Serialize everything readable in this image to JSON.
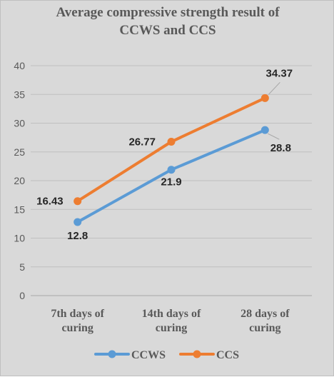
{
  "chart_data": {
    "type": "line",
    "title": "Average compressive strength result  of CCWS and CCS",
    "title_lines": [
      "Average compressive strength result  of",
      "CCWS and CCS"
    ],
    "categories": [
      [
        "7th days of",
        "curing"
      ],
      [
        "14th days of",
        "curing"
      ],
      [
        "28 days of",
        "curing"
      ]
    ],
    "series": [
      {
        "name": "CCWS",
        "color": "#5b9bd5",
        "values": [
          12.8,
          21.9,
          28.8
        ],
        "labels": [
          "12.8",
          "21.9",
          "28.8"
        ]
      },
      {
        "name": "CCS",
        "color": "#ed7d31",
        "values": [
          16.43,
          26.77,
          34.37
        ],
        "labels": [
          "16.43",
          "26.77",
          "34.37"
        ]
      }
    ],
    "ylim": [
      0,
      40
    ],
    "yticks": [
      0,
      5,
      10,
      15,
      20,
      25,
      30,
      35,
      40
    ],
    "xlabel": "",
    "ylabel": "",
    "grid": true,
    "legend": "bottom"
  }
}
